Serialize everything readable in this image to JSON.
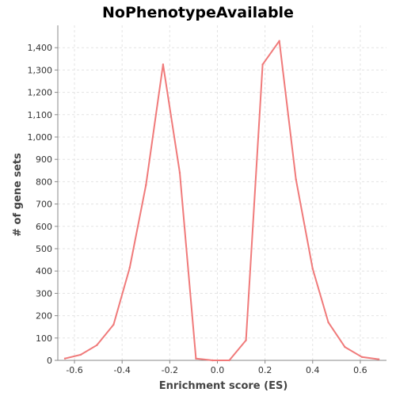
{
  "chart_data": {
    "type": "line",
    "title": "NoPhenotypeAvailable",
    "xlabel": "Enrichment score (ES)",
    "ylabel": "# of gene sets",
    "xlim": [
      -0.67,
      0.71
    ],
    "ylim": [
      0,
      1500
    ],
    "x_ticks": [
      -0.6,
      -0.4,
      -0.2,
      0.0,
      0.2,
      0.4,
      0.6
    ],
    "x_tick_labels": [
      "-0.6",
      "-0.4",
      "-0.2",
      "0.0",
      "0.2",
      "0.4",
      "0.6"
    ],
    "y_ticks": [
      0,
      100,
      200,
      300,
      400,
      500,
      600,
      700,
      800,
      900,
      1000,
      1100,
      1200,
      1300,
      1400
    ],
    "y_tick_labels": [
      "0",
      "100",
      "200",
      "300",
      "400",
      "500",
      "600",
      "700",
      "800",
      "900",
      "1,000",
      "1,100",
      "1,200",
      "1,300",
      "1,400"
    ],
    "grid": true,
    "series": [
      {
        "color": "#f07a7a",
        "x": [
          -0.64,
          -0.574,
          -0.506,
          -0.436,
          -0.368,
          -0.3,
          -0.228,
          -0.158,
          -0.09,
          -0.02,
          0.05,
          0.12,
          0.19,
          0.26,
          0.33,
          0.4,
          0.466,
          0.535,
          0.607,
          0.677
        ],
        "y": [
          8,
          25,
          68,
          160,
          415,
          785,
          1325,
          840,
          8,
          0,
          0,
          90,
          1325,
          1430,
          810,
          410,
          170,
          60,
          15,
          5
        ]
      }
    ]
  }
}
